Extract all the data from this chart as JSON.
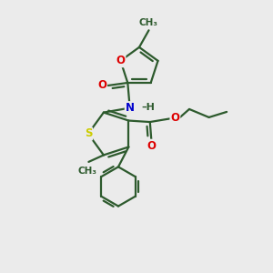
{
  "background_color": "#ebebeb",
  "bond_color": "#2d5a2d",
  "bond_width": 1.6,
  "atom_colors": {
    "O": "#dd0000",
    "N": "#0000cc",
    "S": "#cccc00",
    "C": "#2d5a2d"
  },
  "figsize": [
    3.0,
    3.0
  ],
  "dpi": 100,
  "xlim": [
    0,
    10
  ],
  "ylim": [
    0,
    10
  ]
}
